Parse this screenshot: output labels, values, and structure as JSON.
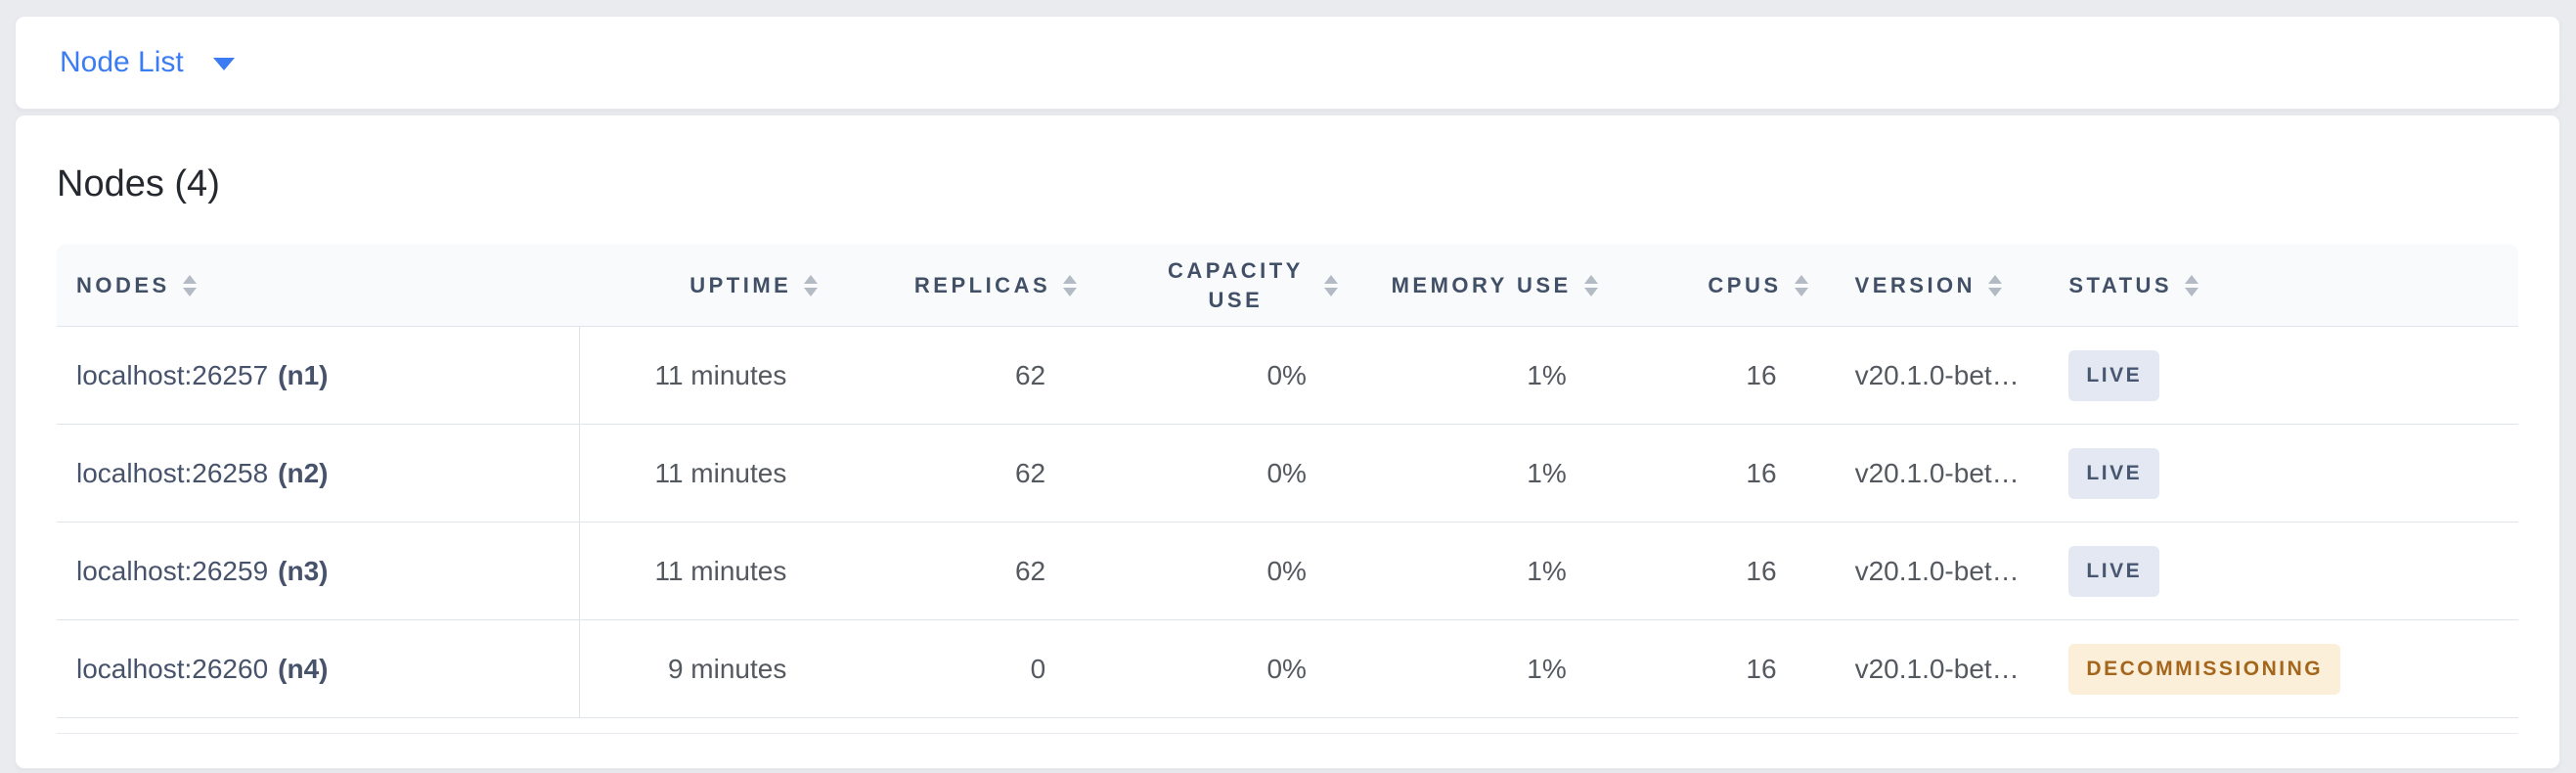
{
  "view_selector": {
    "label": "Node List"
  },
  "main": {
    "title": "Nodes (4)"
  },
  "table": {
    "columns": [
      {
        "label": "NODES"
      },
      {
        "label": "UPTIME"
      },
      {
        "label": "REPLICAS"
      },
      {
        "label": "CAPACITY USE"
      },
      {
        "label": "MEMORY USE"
      },
      {
        "label": "CPUS"
      },
      {
        "label": "VERSION"
      },
      {
        "label": "STATUS"
      }
    ],
    "rows": [
      {
        "address": "localhost:26257",
        "id": "(n1)",
        "uptime": "11 minutes",
        "replicas": "62",
        "capacity_use": "0%",
        "memory_use": "1%",
        "cpus": "16",
        "version": "v20.1.0-bet…",
        "status": "LIVE"
      },
      {
        "address": "localhost:26258",
        "id": "(n2)",
        "uptime": "11 minutes",
        "replicas": "62",
        "capacity_use": "0%",
        "memory_use": "1%",
        "cpus": "16",
        "version": "v20.1.0-bet…",
        "status": "LIVE"
      },
      {
        "address": "localhost:26259",
        "id": "(n3)",
        "uptime": "11 minutes",
        "replicas": "62",
        "capacity_use": "0%",
        "memory_use": "1%",
        "cpus": "16",
        "version": "v20.1.0-bet…",
        "status": "LIVE"
      },
      {
        "address": "localhost:26260",
        "id": "(n4)",
        "uptime": "9 minutes",
        "replicas": "0",
        "capacity_use": "0%",
        "memory_use": "1%",
        "cpus": "16",
        "version": "v20.1.0-bet…",
        "status": "DECOMMISSIONING"
      }
    ]
  },
  "colors": {
    "accent_blue": "#3b7cf2",
    "live_badge_bg": "#e4e8f2",
    "live_badge_text": "#475770",
    "decommissioning_badge_bg": "#fbefd9",
    "decommissioning_badge_text": "#a4661d"
  }
}
